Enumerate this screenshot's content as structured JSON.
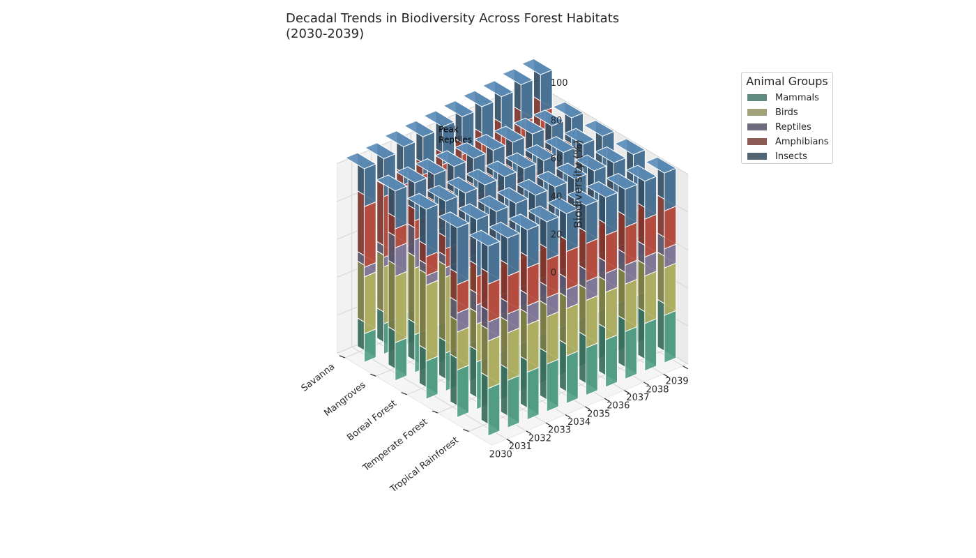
{
  "chart_data": {
    "type": "bar",
    "projection": "3d",
    "stacked": true,
    "title": "Decadal Trends in Biodiversity Across Forest Habitats\n(2030-2039)",
    "x": [
      "2030",
      "2031",
      "2032",
      "2033",
      "2034",
      "2035",
      "2036",
      "2037",
      "2038",
      "2039"
    ],
    "y": [
      "Tropical Rainforest",
      "Temperate Forest",
      "Boreal Forest",
      "Mangroves",
      "Savanna"
    ],
    "zlabel": "Biodiversity (%)",
    "zlim": [
      0,
      100
    ],
    "zticks": [
      0,
      20,
      40,
      60,
      80,
      100
    ],
    "grid": true,
    "legend": {
      "title": "Animal Groups",
      "position": "top-right"
    },
    "annotation": {
      "text": "Peak\nReptiles"
    },
    "series": [
      {
        "name": "Mammals",
        "color": "#66c2a5",
        "values": [
          [
            25,
            25,
            25,
            25,
            25,
            25,
            25,
            25,
            25,
            25
          ],
          [
            25,
            25,
            25,
            25,
            25,
            25,
            25,
            25,
            25,
            25
          ],
          [
            20,
            20,
            20,
            20,
            20,
            20,
            20,
            20,
            20,
            20
          ],
          [
            20,
            20,
            20,
            20,
            20,
            20,
            20,
            20,
            20,
            20
          ],
          [
            15,
            16,
            17,
            18,
            19,
            20,
            21,
            22,
            23,
            24
          ]
        ]
      },
      {
        "name": "Birds",
        "color": "#d9d97a",
        "values": [
          [
            25,
            25,
            25,
            25,
            25,
            25,
            25,
            25,
            25,
            25
          ],
          [
            20,
            20,
            20,
            20,
            20,
            20,
            20,
            20,
            20,
            20
          ],
          [
            40,
            40,
            40,
            40,
            40,
            40,
            40,
            40,
            40,
            40
          ],
          [
            35,
            35,
            35,
            35,
            35,
            35,
            35,
            35,
            35,
            35
          ],
          [
            30,
            30,
            30,
            30,
            30,
            30,
            30,
            30,
            30,
            30
          ]
        ]
      },
      {
        "name": "Reptiles",
        "color": "#9f95bd",
        "values": [
          [
            10,
            10,
            10,
            10,
            10,
            10,
            10,
            10,
            10,
            10
          ],
          [
            10,
            10,
            10,
            10,
            10,
            10,
            10,
            10,
            10,
            10
          ],
          [
            5,
            5,
            5,
            5,
            5,
            5,
            5,
            5,
            5,
            5
          ],
          [
            15,
            15,
            15,
            15,
            15,
            15,
            15,
            15,
            15,
            15
          ],
          [
            5,
            5,
            5,
            5,
            5,
            5,
            5,
            5,
            5,
            5
          ]
        ]
      },
      {
        "name": "Amphibians",
        "color": "#e15f4f",
        "values": [
          [
            20,
            20,
            20,
            20,
            20,
            20,
            20,
            20,
            20,
            20
          ],
          [
            15,
            15,
            15,
            15,
            15,
            15,
            15,
            15,
            15,
            15
          ],
          [
            10,
            10,
            10,
            10,
            10,
            10,
            10,
            10,
            10,
            10
          ],
          [
            10,
            10,
            10,
            10,
            10,
            10,
            10,
            10,
            10,
            10
          ],
          [
            32,
            32,
            33,
            33,
            33,
            33,
            33,
            33,
            34,
            34
          ]
        ]
      },
      {
        "name": "Insects",
        "color": "#5b8db8",
        "values": [
          [
            20,
            20,
            20,
            20,
            20,
            20,
            20,
            20,
            20,
            20
          ],
          [
            30,
            30,
            30,
            30,
            30,
            30,
            30,
            30,
            30,
            30
          ],
          [
            25,
            25,
            25,
            25,
            25,
            25,
            25,
            25,
            25,
            25
          ],
          [
            20,
            20,
            20,
            20,
            20,
            20,
            20,
            20,
            20,
            20
          ],
          [
            20,
            20,
            20,
            20,
            20,
            20,
            20,
            20,
            20,
            20
          ]
        ]
      }
    ],
    "legend_swatch_colors": [
      "#5e8a80",
      "#a1a17a",
      "#6f6a7e",
      "#8e5a54",
      "#536572"
    ]
  }
}
